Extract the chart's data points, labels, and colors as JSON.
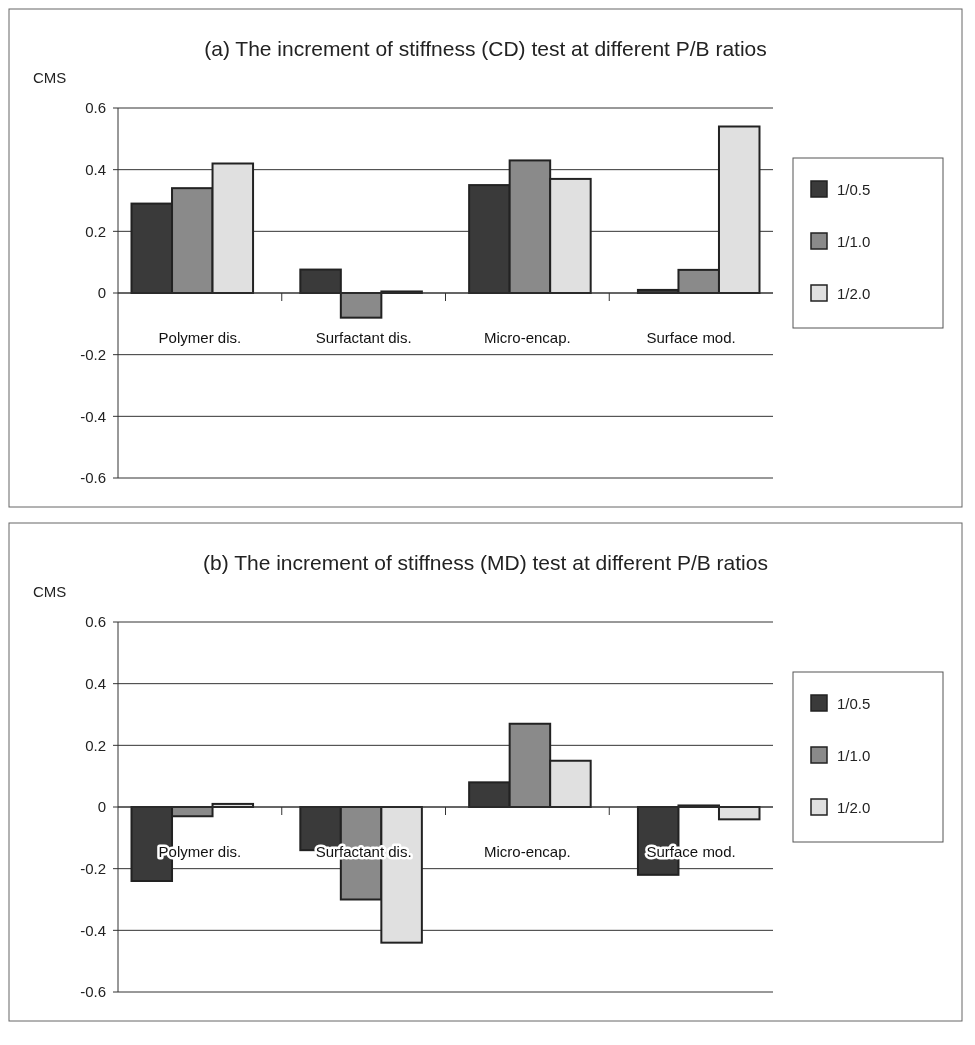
{
  "chart_data": [
    {
      "type": "bar",
      "title": "(a) The increment of stiffness (CD) test at different P/B ratios",
      "ylabel": "CMS",
      "categories": [
        "Polymer dis.",
        "Surfactant dis.",
        "Micro-encap.",
        "Surface mod."
      ],
      "series": [
        {
          "name": "1/0.5",
          "color": "#3a3a3a",
          "values": [
            0.29,
            0.076,
            0.35,
            0.01
          ]
        },
        {
          "name": "1/1.0",
          "color": "#8a8a8a",
          "values": [
            0.34,
            -0.08,
            0.43,
            0.075
          ]
        },
        {
          "name": "1/2.0",
          "color": "#e0e0e0",
          "values": [
            0.42,
            0.005,
            0.37,
            0.54
          ]
        }
      ],
      "ylim": [
        -0.6,
        0.6
      ],
      "yticks": [
        -0.6,
        -0.4,
        -0.2,
        0,
        0.2,
        0.4,
        0.6
      ],
      "grid": "y",
      "legend": "right"
    },
    {
      "type": "bar",
      "title": "(b) The increment of stiffness (MD) test at different P/B ratios",
      "ylabel": "CMS",
      "categories": [
        "Polymer dis.",
        "Surfactant dis.",
        "Micro-encap.",
        "Surface mod."
      ],
      "series": [
        {
          "name": "1/0.5",
          "color": "#3a3a3a",
          "values": [
            -0.24,
            -0.14,
            0.08,
            -0.22
          ]
        },
        {
          "name": "1/1.0",
          "color": "#8a8a8a",
          "values": [
            -0.03,
            -0.3,
            0.27,
            0.005
          ]
        },
        {
          "name": "1/2.0",
          "color": "#e0e0e0",
          "values": [
            0.01,
            -0.44,
            0.15,
            -0.04
          ]
        }
      ],
      "ylim": [
        -0.6,
        0.6
      ],
      "yticks": [
        -0.6,
        -0.4,
        -0.2,
        0,
        0.2,
        0.4,
        0.6
      ],
      "grid": "y",
      "legend": "right"
    }
  ]
}
